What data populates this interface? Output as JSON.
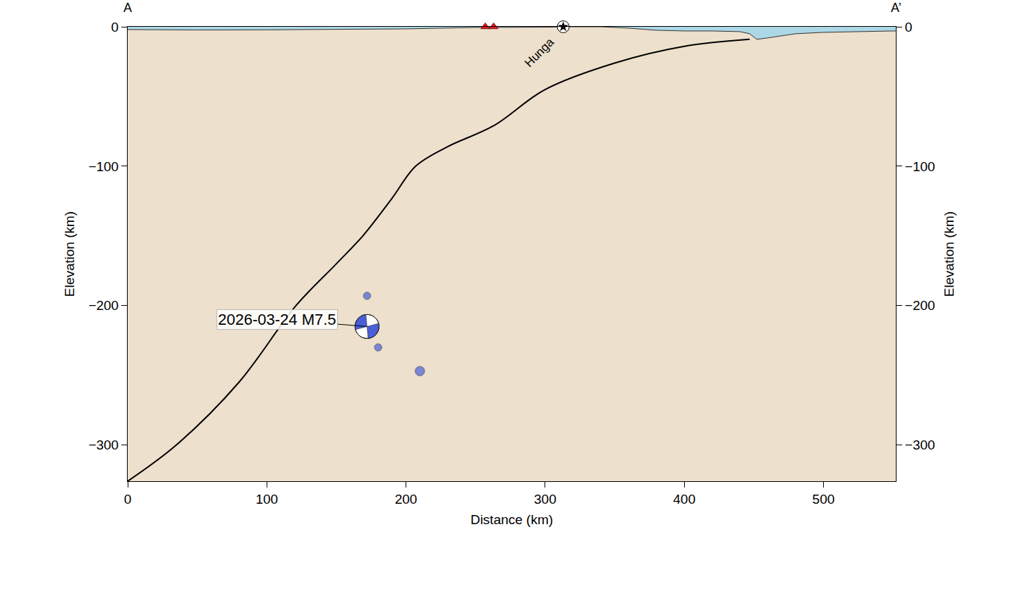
{
  "chart_data": {
    "type": "cross_section",
    "xlabel": "Distance (km)",
    "ylabel": "Elevation (km)",
    "xlim": [
      0,
      552
    ],
    "ylim": [
      -326,
      0
    ],
    "xticks": [
      0,
      100,
      200,
      300,
      400,
      500
    ],
    "yticks": [
      0,
      {
        "value": -100,
        "label": "−100"
      },
      {
        "value": -200,
        "label": "−200"
      },
      {
        "value": -300,
        "label": "−300"
      }
    ],
    "section_ends": {
      "start": "A",
      "end": "A’"
    },
    "topography": {
      "x": [
        0,
        50,
        100,
        150,
        200,
        250,
        280,
        300,
        320,
        340,
        360,
        380,
        400,
        420,
        440,
        447,
        452,
        460,
        480,
        500,
        550,
        552
      ],
      "y": [
        -2,
        -2.3,
        -2.2,
        -2,
        -1.5,
        -0.5,
        -0.5,
        -0.3,
        0,
        0,
        -1,
        -2.5,
        -3,
        -3,
        -3.5,
        -5,
        -9,
        -8,
        -5,
        -4,
        -3,
        -3
      ]
    },
    "slab": {
      "x": [
        0,
        35,
        80,
        121,
        150,
        169,
        190,
        207,
        230,
        263,
        300,
        350,
        400,
        447
      ],
      "y": [
        -326,
        -300,
        -255,
        -200,
        -170,
        -150,
        -123,
        -100,
        -86,
        -71,
        -45,
        -26,
        -14,
        -9
      ]
    },
    "earthquakes": {
      "x": [
        172,
        180,
        210
      ],
      "y": [
        -193,
        -230,
        -247
      ],
      "magnitude": [
        5.5,
        5.5,
        6.5
      ],
      "color": "#4a5fd6"
    },
    "mainshock": {
      "x": 172,
      "y": -215,
      "label": "2026-03-24 M7.5",
      "color": "#4a5fd6"
    },
    "volcanoes": {
      "x": [
        257,
        263
      ],
      "y": [
        0,
        0
      ],
      "color": "#e8161b"
    },
    "hunga": {
      "x": 313,
      "y": 0,
      "label": "Hunga"
    }
  }
}
